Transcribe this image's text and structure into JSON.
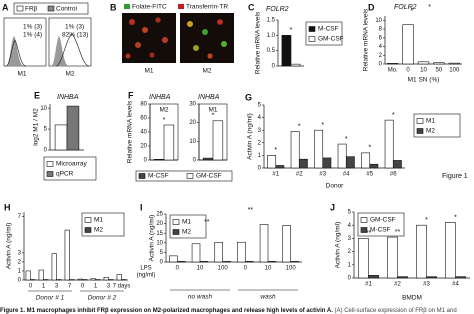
{
  "figure_label": "Figure 1",
  "caption": {
    "title": "Figure 1. M1 macrophages inhibit FRβ expression on M2-polarized macrophages and release high levels of activin A.",
    "text": "(A) Cell-surface expression of FRβ on M1 and"
  },
  "panel_a": {
    "label": "A",
    "legend": [
      "FRβ",
      "Control"
    ],
    "plots": [
      {
        "name": "M1",
        "stats": [
          "1% (3)",
          "1% (4)"
        ]
      },
      {
        "name": "M2",
        "stats": [
          "1% (3)",
          "82% (13)"
        ]
      }
    ]
  },
  "panel_b": {
    "label": "B",
    "legend": [
      "Folate-FITC",
      "Transferrin-TR"
    ],
    "images": [
      "M1",
      "M2"
    ]
  },
  "chart_data": [
    {
      "type": "bar",
      "panel": "C",
      "title": "FOLR2",
      "y_label": "Relative mRNA levels",
      "categories": [
        null
      ],
      "series": [
        {
          "name": "M-CSF",
          "color": "#111111",
          "values": [
            1.0
          ]
        },
        {
          "name": "GM-CSF",
          "color": "#ffffff",
          "values": [
            0.06
          ]
        }
      ],
      "ylim": [
        0,
        1.5
      ],
      "yticks": [
        0,
        0.5,
        {
          "value": 1,
          "label": "1.0"
        },
        1.5
      ],
      "annotations": [
        "*"
      ]
    },
    {
      "type": "bar",
      "panel": "D",
      "title": "FOLR2",
      "y_label": "Relative mRNA levels",
      "categories": [
        "Mo.",
        "0",
        "10",
        "50",
        "100"
      ],
      "x_label": "M1 SN (%)",
      "series": [
        {
          "color": "#ffffff",
          "values": [
            0.15,
            9.0,
            0.5,
            0.3,
            0.2
          ]
        }
      ],
      "ylim": [
        0,
        11
      ],
      "yticks": [
        0,
        2,
        4,
        6,
        8,
        10
      ],
      "annotations": [
        "*",
        "*"
      ]
    },
    {
      "type": "bar",
      "panel": "E",
      "title": "INHBA",
      "y_label": "log2 M1 / M2",
      "categories": [
        null
      ],
      "series": [
        {
          "name": "Microarray",
          "color": "#ffffff",
          "values": [
            6
          ]
        },
        {
          "name": "qPCR",
          "color": "#777777",
          "values": [
            10.5
          ]
        }
      ],
      "ylim": [
        0,
        11
      ],
      "yticks": [
        0,
        5,
        10
      ]
    },
    {
      "type": "bar",
      "panel": "F",
      "title": "INHBA",
      "subtitle": "M2",
      "y_label": "Relative mRNA levels",
      "categories": [
        null
      ],
      "series": [
        {
          "name": "M-CSF",
          "color": "#444444",
          "values": [
            1
          ]
        },
        {
          "name": "GM-CSF",
          "color": "#ffffff",
          "values": [
            50
          ]
        }
      ],
      "ylim": [
        0,
        80
      ],
      "yticks": [
        0,
        20,
        40,
        60,
        80
      ],
      "annotations": [
        "*"
      ]
    },
    {
      "type": "bar",
      "title": "INHBA",
      "subtitle": "M1",
      "categories": [
        null
      ],
      "series": [
        {
          "color": "#444444",
          "values": [
            1
          ]
        },
        {
          "color": "#ffffff",
          "values": [
            21
          ]
        }
      ],
      "ylim": [
        0,
        30
      ],
      "yticks": [
        0,
        10,
        20,
        30
      ],
      "annotations": [
        "*"
      ]
    },
    {
      "type": "bar",
      "panel": "G",
      "y_label": "Activin A (ng/ml)",
      "categories": [
        "#1",
        "#2",
        "#3",
        "#4",
        "#5",
        "#6"
      ],
      "x_label": "Donor",
      "series": [
        {
          "name": "M1",
          "color": "#ffffff",
          "values": [
            1.0,
            2.9,
            3.0,
            1.9,
            1.2,
            3.8
          ]
        },
        {
          "name": "M2",
          "color": "#444444",
          "values": [
            0.2,
            0.7,
            0.8,
            0.9,
            0.3,
            0.6
          ]
        }
      ],
      "ylim": [
        0,
        5
      ],
      "yticks": [
        0,
        1,
        2,
        3,
        4,
        5
      ],
      "annotations": [
        "*",
        "*",
        "*",
        "*",
        "*",
        "*"
      ]
    },
    {
      "type": "bar",
      "panel": "H",
      "y_label": "Activin A (ng/ml)",
      "categories": [
        "0",
        "1",
        "3",
        "7",
        "0",
        "1",
        "3",
        "7 days"
      ],
      "groups": [
        "Donor # 1",
        "Donor # 2"
      ],
      "series": [
        {
          "name": "M1",
          "color": "#ffffff",
          "values": [
            1.0,
            1.1,
            2.9,
            5.5,
            0.1,
            0.15,
            0.3,
            0.6
          ]
        },
        {
          "name": "M2",
          "color": "#444444",
          "values": [
            0.05,
            0.05,
            0.05,
            0.05,
            0.05,
            0.05,
            0.05,
            0.05
          ]
        }
      ],
      "ylim": [
        0,
        7.5
      ],
      "yticks": [
        0,
        1,
        2,
        3,
        7
      ]
    },
    {
      "type": "bar",
      "panel": "I",
      "y_label": "Activin A (ng/ml)",
      "categories": [
        "0",
        "10",
        "100",
        "0",
        "10",
        "100"
      ],
      "x_row_label": [
        "LPS",
        "(ng/ml)"
      ],
      "groups": [
        "no wash",
        "wash"
      ],
      "series": [
        {
          "name": "M1",
          "color": "#ffffff",
          "values": [
            3.2,
            9.5,
            10.2,
            10.3,
            19.5,
            19.0
          ]
        },
        {
          "name": "M2",
          "color": "#444444",
          "values": [
            0.3,
            0.3,
            0.3,
            0.3,
            0.3,
            0.3
          ]
        }
      ],
      "ylim": [
        0,
        25
      ],
      "yticks": [
        0,
        5,
        10,
        15,
        20,
        25
      ],
      "annotations": [
        "**",
        "**"
      ]
    },
    {
      "type": "bar",
      "panel": "J",
      "y_label": "Activin A (ng/ml)",
      "categories": [
        "#1",
        "#2",
        "#3",
        "#4"
      ],
      "x_label": "BMDM",
      "series": [
        {
          "name": "GM-CSF",
          "color": "#ffffff",
          "values": [
            3.0,
            3.1,
            4.0,
            4.2
          ]
        },
        {
          "name": "M-CSF",
          "color": "#444444",
          "values": [
            0.2,
            0.1,
            0.1,
            0.1
          ]
        }
      ],
      "ylim": [
        0,
        5
      ],
      "yticks": [
        0,
        1,
        2,
        3,
        4,
        5
      ],
      "annotations": [
        "**",
        "**",
        "*",
        "*"
      ]
    }
  ]
}
